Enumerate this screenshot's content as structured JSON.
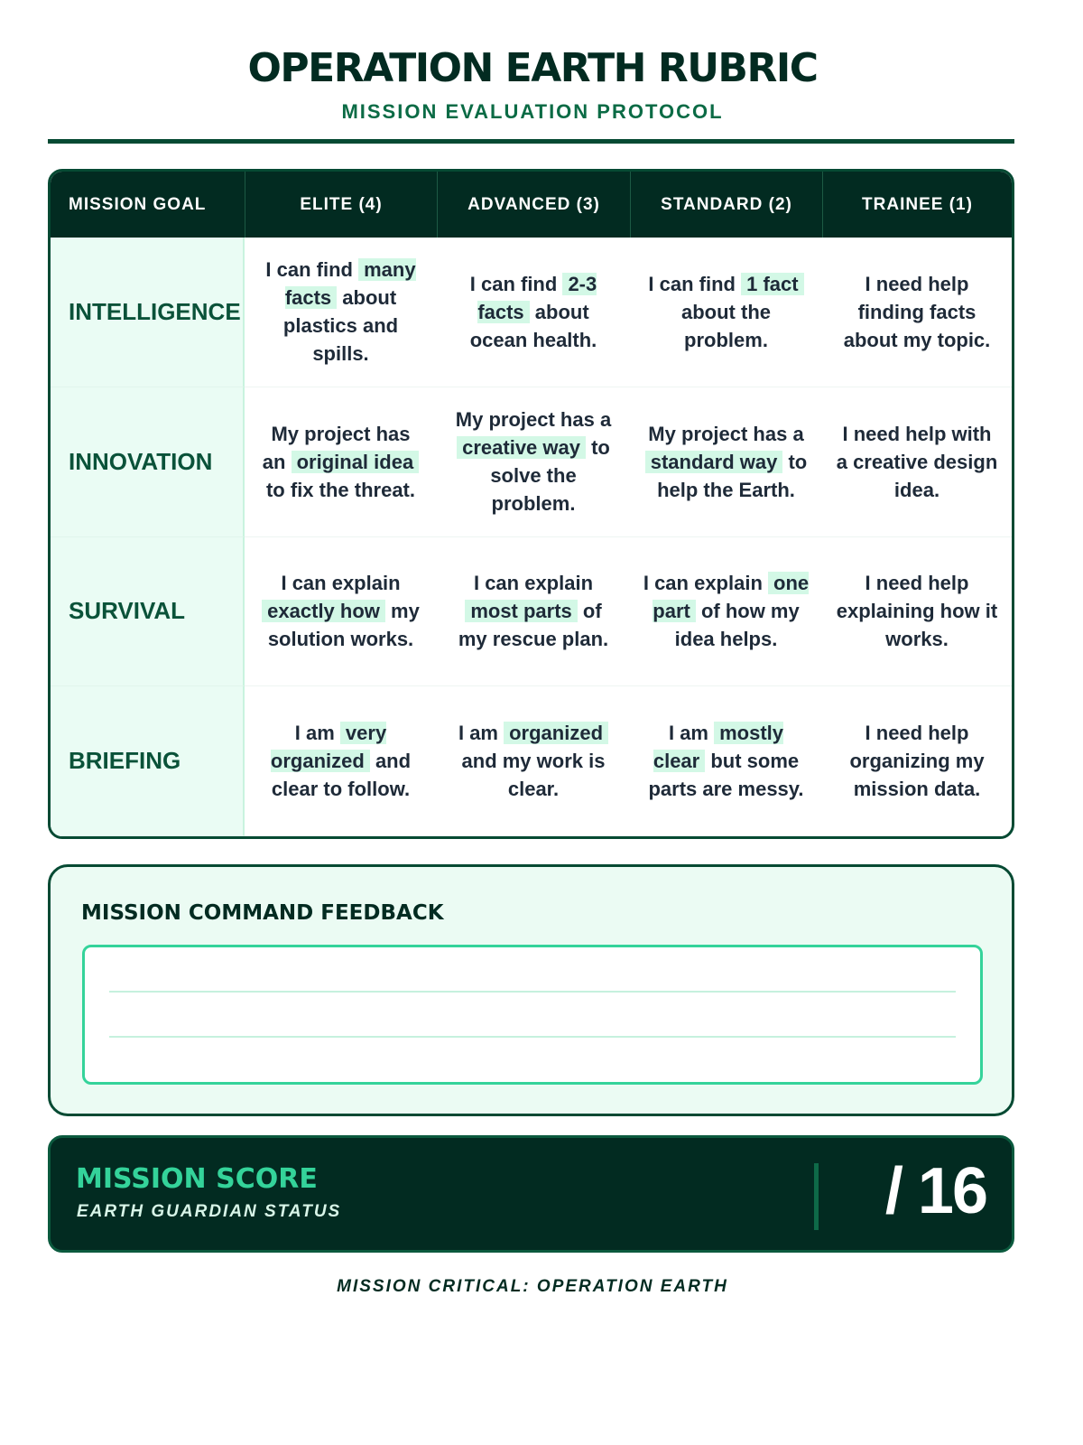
{
  "header": {
    "title": "OPERATION EARTH RUBRIC",
    "subtitle": "MISSION EVALUATION PROTOCOL"
  },
  "colors": {
    "dark": "#022b21",
    "accent": "#34d39a",
    "highlight": "#d3f8e6"
  },
  "table": {
    "columns": [
      "MISSION GOAL",
      "ELITE (4)",
      "ADVANCED (3)",
      "STANDARD (2)",
      "TRAINEE (1)"
    ],
    "rows": [
      {
        "goal": "INTELLIGENCE",
        "cells": [
          [
            {
              "t": "I can find "
            },
            {
              "t": "many facts",
              "hl": true
            },
            {
              "t": " about plastics and spills."
            }
          ],
          [
            {
              "t": "I can find "
            },
            {
              "t": "2-3 facts",
              "hl": true
            },
            {
              "t": " about ocean health."
            }
          ],
          [
            {
              "t": "I can find "
            },
            {
              "t": "1 fact",
              "hl": true
            },
            {
              "t": " about the problem."
            }
          ],
          [
            {
              "t": "I need help finding facts about my topic."
            }
          ]
        ]
      },
      {
        "goal": "INNOVATION",
        "cells": [
          [
            {
              "t": "My project has an "
            },
            {
              "t": "original idea",
              "hl": true
            },
            {
              "t": " to fix the threat."
            }
          ],
          [
            {
              "t": "My project has a "
            },
            {
              "t": "creative way",
              "hl": true
            },
            {
              "t": " to solve the problem."
            }
          ],
          [
            {
              "t": "My project has a "
            },
            {
              "t": "standard way",
              "hl": true
            },
            {
              "t": " to help the Earth."
            }
          ],
          [
            {
              "t": "I need help with a creative design idea."
            }
          ]
        ]
      },
      {
        "goal": "SURVIVAL",
        "cells": [
          [
            {
              "t": "I can explain "
            },
            {
              "t": "exactly how",
              "hl": true
            },
            {
              "t": " my solution works."
            }
          ],
          [
            {
              "t": "I can explain "
            },
            {
              "t": "most parts",
              "hl": true
            },
            {
              "t": " of my rescue plan."
            }
          ],
          [
            {
              "t": "I can explain "
            },
            {
              "t": "one part",
              "hl": true
            },
            {
              "t": " of how my idea helps."
            }
          ],
          [
            {
              "t": "I need help explaining how it works."
            }
          ]
        ]
      },
      {
        "goal": "BRIEFING",
        "cells": [
          [
            {
              "t": "I am "
            },
            {
              "t": "very organized",
              "hl": true
            },
            {
              "t": " and clear to follow."
            }
          ],
          [
            {
              "t": "I am "
            },
            {
              "t": "organized",
              "hl": true
            },
            {
              "t": " and my work is clear."
            }
          ],
          [
            {
              "t": "I am "
            },
            {
              "t": "mostly clear",
              "hl": true
            },
            {
              "t": " but some parts are messy."
            }
          ],
          [
            {
              "t": "I need help organizing my mission data."
            }
          ]
        ]
      }
    ]
  },
  "feedback": {
    "title": "MISSION COMMAND FEEDBACK",
    "value": ""
  },
  "score": {
    "title": "MISSION SCORE",
    "subtitle": "EARTH GUARDIAN STATUS",
    "value": "",
    "total": "/ 16"
  },
  "footer": "MISSION CRITICAL: OPERATION EARTH"
}
